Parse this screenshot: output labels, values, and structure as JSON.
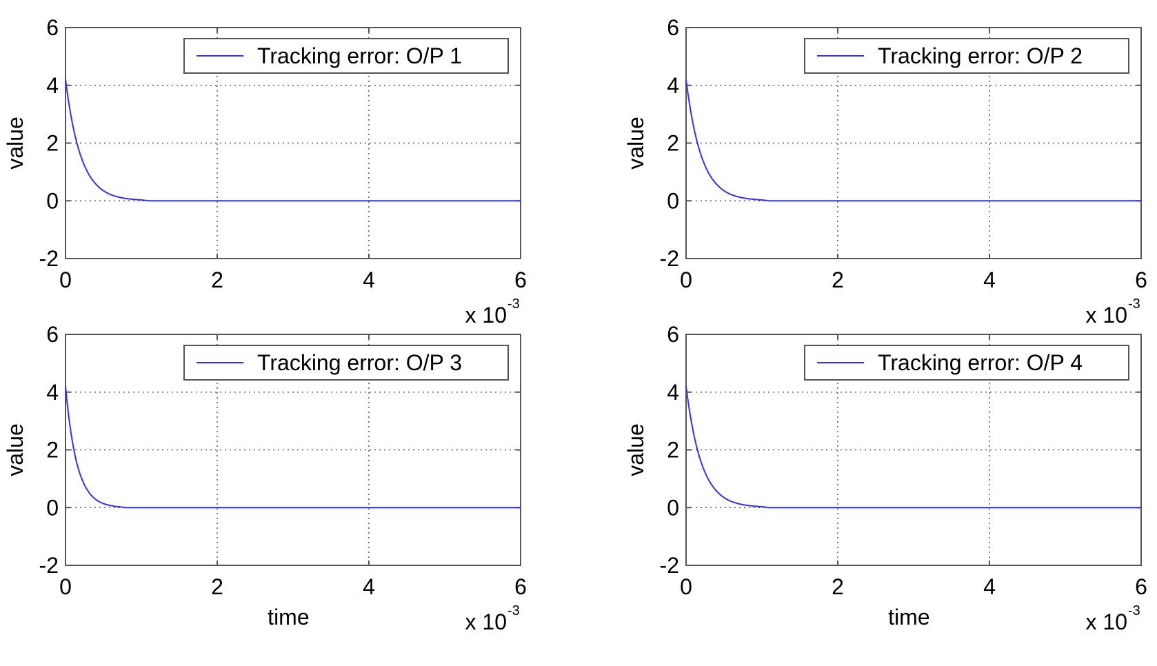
{
  "chart_data": [
    {
      "type": "line",
      "title": "",
      "xlabel": "",
      "ylabel": "value",
      "x_multiplier_label": "x 10",
      "x_multiplier_exponent": "-3",
      "xlim": [
        0,
        6
      ],
      "ylim": [
        -2,
        6
      ],
      "xticks": [
        "0",
        "2",
        "4",
        "6"
      ],
      "yticks": [
        "-2",
        "0",
        "2",
        "4",
        "6"
      ],
      "grid": true,
      "legend_position": "top-right",
      "series": [
        {
          "name": "Tracking error: O/P 1",
          "color": "#3030ff",
          "x": [
            0,
            0.05,
            0.1,
            0.15,
            0.2,
            0.3,
            0.4,
            0.5,
            0.6,
            0.7,
            0.8,
            0.9,
            1.0,
            1.1,
            1.5,
            2,
            3,
            4,
            5,
            6
          ],
          "y": [
            4.2,
            3.28,
            2.56,
            2.0,
            1.56,
            0.95,
            0.58,
            0.35,
            0.21,
            0.13,
            0.08,
            0.05,
            0.03,
            0.0,
            0,
            0,
            0,
            0,
            0,
            0
          ]
        }
      ]
    },
    {
      "type": "line",
      "title": "",
      "xlabel": "",
      "ylabel": "value",
      "x_multiplier_label": "x 10",
      "x_multiplier_exponent": "-3",
      "xlim": [
        0,
        6
      ],
      "ylim": [
        -2,
        6
      ],
      "xticks": [
        "0",
        "2",
        "4",
        "6"
      ],
      "yticks": [
        "-2",
        "0",
        "2",
        "4",
        "6"
      ],
      "grid": true,
      "legend_position": "top-right",
      "series": [
        {
          "name": "Tracking error: O/P 2",
          "color": "#3030ff",
          "x": [
            0,
            0.05,
            0.1,
            0.15,
            0.2,
            0.3,
            0.4,
            0.5,
            0.6,
            0.7,
            0.8,
            0.9,
            1.0,
            1.1,
            1.5,
            2,
            3,
            4,
            5,
            6
          ],
          "y": [
            4.2,
            3.28,
            2.56,
            2.0,
            1.56,
            0.95,
            0.58,
            0.35,
            0.21,
            0.13,
            0.08,
            0.05,
            0.03,
            0.0,
            0,
            0,
            0,
            0,
            0,
            0
          ]
        }
      ]
    },
    {
      "type": "line",
      "title": "",
      "xlabel": "time",
      "ylabel": "value",
      "x_multiplier_label": "x 10",
      "x_multiplier_exponent": "-3",
      "xlim": [
        0,
        6
      ],
      "ylim": [
        -2,
        6
      ],
      "xticks": [
        "0",
        "2",
        "4",
        "6"
      ],
      "yticks": [
        "-2",
        "0",
        "2",
        "4",
        "6"
      ],
      "grid": true,
      "legend_position": "top-right",
      "series": [
        {
          "name": "Tracking error: O/P 3",
          "color": "#3030ff",
          "x": [
            0,
            0.05,
            0.1,
            0.15,
            0.2,
            0.3,
            0.4,
            0.5,
            0.6,
            0.7,
            0.8,
            0.9,
            1.0,
            1.5,
            2,
            3,
            4,
            5,
            6
          ],
          "y": [
            4.2,
            3.0,
            2.15,
            1.53,
            1.1,
            0.56,
            0.28,
            0.14,
            0.07,
            0.03,
            0.0,
            0,
            0,
            0,
            0,
            0,
            0,
            0,
            0
          ]
        }
      ]
    },
    {
      "type": "line",
      "title": "",
      "xlabel": "time",
      "ylabel": "value",
      "x_multiplier_label": "x 10",
      "x_multiplier_exponent": "-3",
      "xlim": [
        0,
        6
      ],
      "ylim": [
        -2,
        6
      ],
      "xticks": [
        "0",
        "2",
        "4",
        "6"
      ],
      "yticks": [
        "-2",
        "0",
        "2",
        "4",
        "6"
      ],
      "grid": true,
      "legend_position": "top-right",
      "series": [
        {
          "name": "Tracking error: O/P 4",
          "color": "#3030ff",
          "x": [
            0,
            0.05,
            0.1,
            0.15,
            0.2,
            0.3,
            0.4,
            0.5,
            0.6,
            0.7,
            0.8,
            0.9,
            1.0,
            1.1,
            1.5,
            2,
            3,
            4,
            5,
            6
          ],
          "y": [
            4.2,
            3.28,
            2.56,
            2.0,
            1.56,
            0.95,
            0.58,
            0.35,
            0.21,
            0.13,
            0.08,
            0.05,
            0.03,
            0.0,
            0,
            0,
            0,
            0,
            0,
            0
          ]
        }
      ]
    }
  ]
}
